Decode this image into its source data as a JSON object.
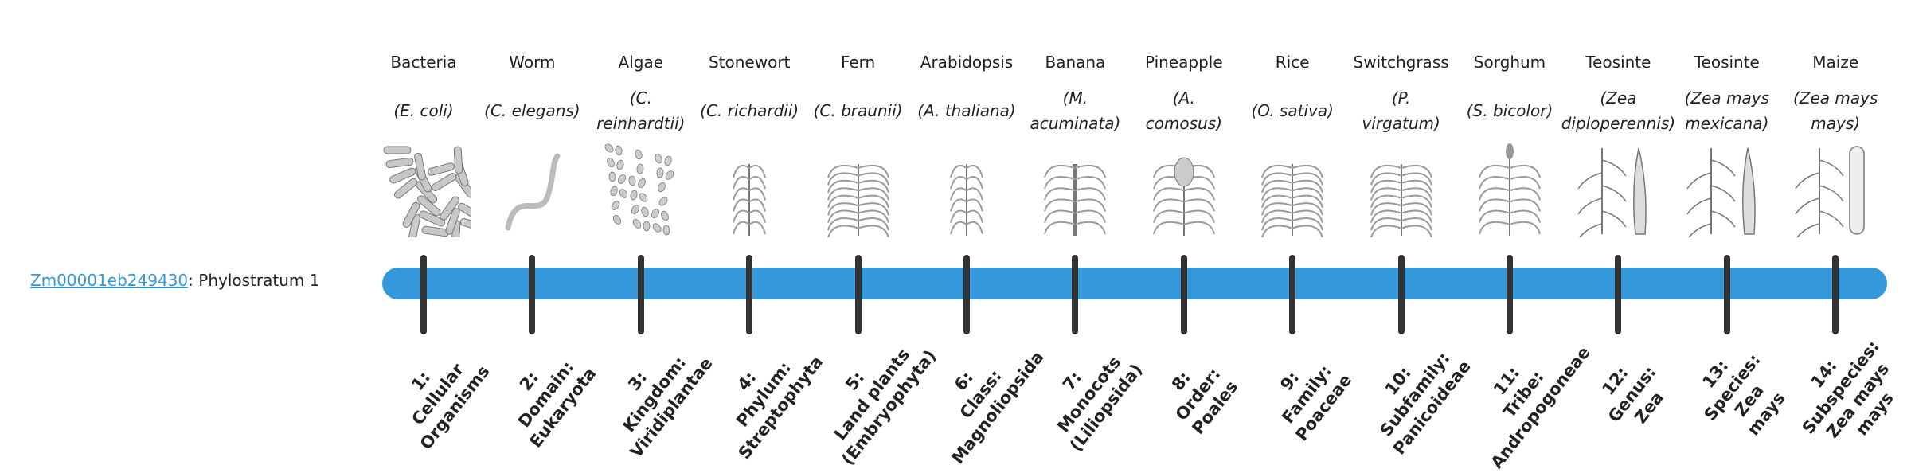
{
  "gene": {
    "id": "Zm00001eb249430",
    "suffix": ": Phylostratum 1"
  },
  "colors": {
    "bar": "#3498db",
    "tick": "#333333",
    "link": "#3498db"
  },
  "organisms": [
    {
      "common": "Bacteria",
      "sci": [
        "(E. coli)"
      ],
      "icon": "bacteria-icon",
      "rank": [
        "1:",
        "Cellular",
        "Organisms"
      ]
    },
    {
      "common": "Worm",
      "sci": [
        "(C. elegans)"
      ],
      "icon": "worm-icon",
      "rank": [
        "2:",
        "Domain:",
        "Eukaryota"
      ]
    },
    {
      "common": "Algae",
      "sci": [
        "(C.",
        "reinhardtii)"
      ],
      "icon": "algae-icon",
      "rank": [
        "3:",
        "Kingdom:",
        "Viridiplantae"
      ]
    },
    {
      "common": "Stonewort",
      "sci": [
        "(C. richardii)"
      ],
      "icon": "stonewort-icon",
      "rank": [
        "4:",
        "Phylum:",
        "Streptophyta"
      ]
    },
    {
      "common": "Fern",
      "sci": [
        "(C. braunii)"
      ],
      "icon": "fern-icon",
      "rank": [
        "5:",
        "Land plants",
        "(Embryophyta)"
      ]
    },
    {
      "common": "Arabidopsis",
      "sci": [
        "(A. thaliana)"
      ],
      "icon": "arabidopsis-icon",
      "rank": [
        "6:",
        "Class:",
        "Magnoliopsida"
      ]
    },
    {
      "common": "Banana",
      "sci": [
        "(M.",
        "acuminata)"
      ],
      "icon": "banana-icon",
      "rank": [
        "7:",
        "Monocots",
        "(Liliopsida)"
      ]
    },
    {
      "common": "Pineapple",
      "sci": [
        "(A.",
        "comosus)"
      ],
      "icon": "pineapple-icon",
      "rank": [
        "8:",
        "Order:",
        "Poales"
      ]
    },
    {
      "common": "Rice",
      "sci": [
        "(O. sativa)"
      ],
      "icon": "rice-icon",
      "rank": [
        "9:",
        "Family:",
        "Poaceae"
      ]
    },
    {
      "common": "Switchgrass",
      "sci": [
        "(P.",
        "virgatum)"
      ],
      "icon": "switchgrass-icon",
      "rank": [
        "10:",
        "Subfamily:",
        "Panicoideae"
      ]
    },
    {
      "common": "Sorghum",
      "sci": [
        "(S. bicolor)"
      ],
      "icon": "sorghum-icon",
      "rank": [
        "11:",
        "Tribe:",
        "Andropogoneae"
      ]
    },
    {
      "common": "Teosinte",
      "sci": [
        "(Zea",
        "diploperennis)"
      ],
      "icon": "teosinte-icon",
      "rank": [
        "12:",
        "Genus:",
        "Zea"
      ]
    },
    {
      "common": "Teosinte",
      "sci": [
        "(Zea mays",
        "mexicana)"
      ],
      "icon": "teosinte-icon",
      "rank": [
        "13:",
        "Species:",
        "Zea",
        "mays"
      ]
    },
    {
      "common": "Maize",
      "sci": [
        "(Zea mays",
        "mays)"
      ],
      "icon": "maize-icon",
      "rank": [
        "14:",
        "Subspecies:",
        "Zea mays",
        "mays"
      ]
    }
  ]
}
